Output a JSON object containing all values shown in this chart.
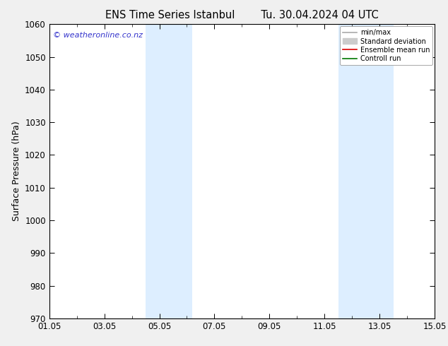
{
  "title_left": "ENS Time Series Istanbul",
  "title_right": "Tu. 30.04.2024 04 UTC",
  "ylabel": "Surface Pressure (hPa)",
  "ylim": [
    970,
    1060
  ],
  "yticks": [
    970,
    980,
    990,
    1000,
    1010,
    1020,
    1030,
    1040,
    1050,
    1060
  ],
  "xlim": [
    0,
    14
  ],
  "xtick_labels": [
    "01.05",
    "03.05",
    "05.05",
    "07.05",
    "09.05",
    "11.05",
    "13.05",
    "15.05"
  ],
  "xtick_positions": [
    0,
    2,
    4,
    6,
    8,
    10,
    12,
    14
  ],
  "shade_bands": [
    {
      "xstart": 3.5,
      "xend": 5.2
    },
    {
      "xstart": 10.5,
      "xend": 12.5
    }
  ],
  "shade_color": "#ddeeff",
  "watermark": "© weatheronline.co.nz",
  "watermark_color": "#3333cc",
  "legend_items": [
    {
      "label": "min/max",
      "color": "#aaaaaa",
      "lw": 1.2,
      "style": "solid",
      "type": "line"
    },
    {
      "label": "Standard deviation",
      "color": "#cccccc",
      "lw": 8,
      "style": "solid",
      "type": "patch"
    },
    {
      "label": "Ensemble mean run",
      "color": "#dd0000",
      "lw": 1.2,
      "style": "solid",
      "type": "line"
    },
    {
      "label": "Controll run",
      "color": "#007700",
      "lw": 1.2,
      "style": "solid",
      "type": "line"
    }
  ],
  "bg_color": "#ffffff",
  "outer_bg": "#f0f0f0",
  "title_fontsize": 10.5,
  "axis_label_fontsize": 9,
  "tick_fontsize": 8.5
}
